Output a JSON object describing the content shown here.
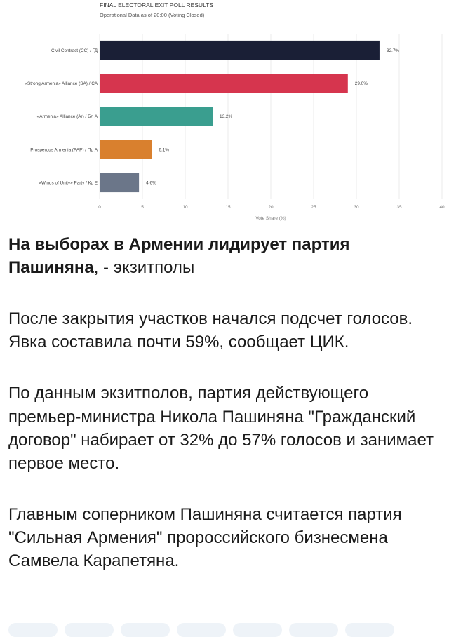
{
  "chart_data": {
    "type": "bar",
    "orientation": "horizontal",
    "title": "FINAL ELECTORAL EXIT POLL RESULTS",
    "subtitle": "Operational Data as of 20:00 (Voting Closed)",
    "categories": [
      "Civil Contract (CC) / ГД",
      "«Strong Armenia» Alliance (SA) / СА",
      "«Armenia» Alliance (Ar) / Бл А",
      "Prosperous Armenia (PAP) / Пр А",
      "«Wings of Unity» Party / Кр Е"
    ],
    "values": [
      32.7,
      29.0,
      13.2,
      6.1,
      4.6
    ],
    "value_labels": [
      "32.7%",
      "29.0%",
      "13.2%",
      "6.1%",
      "4.6%"
    ],
    "colors": [
      "#1a1f36",
      "#d6354e",
      "#3a9e8f",
      "#d9802e",
      "#6b7689"
    ],
    "xlabel": "Vote Share (%)",
    "ylabel": "",
    "xlim": [
      0,
      40
    ],
    "xticks": [
      "0",
      "5",
      "10",
      "15",
      "20",
      "25",
      "30",
      "35",
      "40"
    ],
    "grid": true,
    "legend": "none"
  },
  "post": {
    "headline_bold": "На выборах в Армении лидирует партия Пашиняна",
    "headline_rest": ", - экзитполы",
    "paragraphs": [
      "После закрытия участков начался подсчет голосов. Явка составила почти 59%, сообщает ЦИК.",
      "По данным экзитполов, партия действующего премьер-министра Никола Пашиняна \"Гражданский договор\" набирает от 32% до 57% голосов и занимает первое место.",
      "Главным соперником Пашиняна считается партия \"Сильная Армения\" пророссийского бизнесмена Самвела Карапетяна."
    ]
  }
}
